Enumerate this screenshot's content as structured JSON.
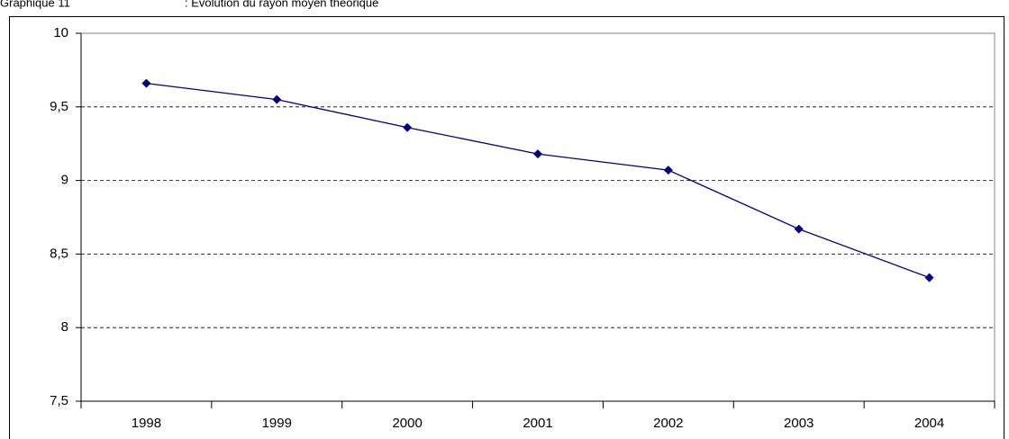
{
  "chart_data": {
    "type": "line",
    "label": "Graphique 11",
    "title": ": Evolution du rayon moyen théorique",
    "categories": [
      "1998",
      "1999",
      "2000",
      "2001",
      "2002",
      "2003",
      "2004"
    ],
    "series": [
      {
        "name": "rayon moyen",
        "color": "#000080",
        "values": [
          9.66,
          9.55,
          9.36,
          9.18,
          9.07,
          8.67,
          8.34
        ]
      }
    ],
    "ylim": [
      7.5,
      10
    ],
    "yticks": [
      {
        "value": 7.5,
        "label": "7,5"
      },
      8,
      {
        "value": 8.5,
        "label": "8,5"
      },
      9,
      {
        "value": 9.5,
        "label": "9,5"
      },
      10
    ],
    "grid": true
  }
}
